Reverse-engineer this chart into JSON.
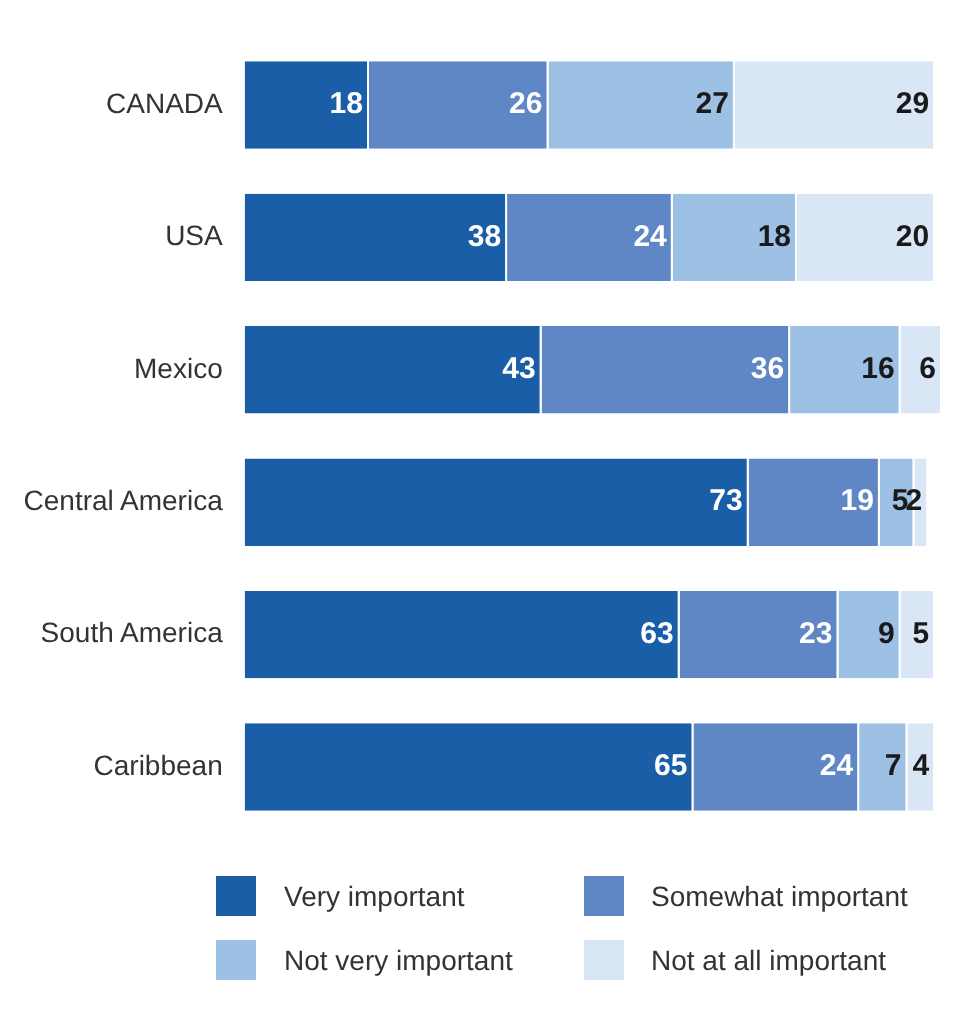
{
  "chart_data": {
    "type": "bar",
    "orientation": "horizontal",
    "stacked": true,
    "relative": false,
    "data_labels": true,
    "grid": false,
    "legend": "bottom",
    "categories": [
      "CANADA",
      "USA",
      "Mexico",
      "Central America",
      "South America",
      "Caribbean"
    ],
    "series": [
      {
        "name": "Very important",
        "color": "#1a5ea8",
        "values": [
          18,
          38,
          43,
          73,
          63,
          65
        ]
      },
      {
        "name": "Somewhat important",
        "color": "#5f86c5",
        "values": [
          26,
          24,
          36,
          19,
          23,
          24
        ]
      },
      {
        "name": "Not very important",
        "color": "#9dc0e5",
        "values": [
          27,
          18,
          16,
          5,
          9,
          7
        ]
      },
      {
        "name": "Not at all important",
        "color": "#d9e6f5",
        "values": [
          29,
          20,
          6,
          2,
          5,
          4
        ]
      }
    ]
  }
}
